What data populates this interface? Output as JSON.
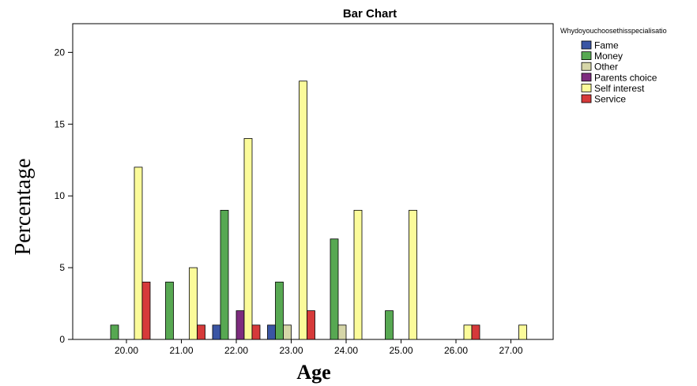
{
  "chart_data": {
    "type": "bar",
    "title": "Bar Chart",
    "xlabel": "Age",
    "ylabel": "Percentage",
    "legend_title": "Whydoyouchoosethisspecialisatio",
    "legend_position": "right",
    "ylim": [
      0,
      22
    ],
    "yticks": [
      0,
      5,
      10,
      15,
      20
    ],
    "grid": false,
    "categories": [
      "20.00",
      "21.00",
      "22.00",
      "23.00",
      "24.00",
      "25.00",
      "26.00",
      "27.00"
    ],
    "series": [
      {
        "name": "Fame",
        "color": "#3a55a4",
        "values": [
          0,
          0,
          1,
          1,
          0,
          0,
          0,
          0
        ]
      },
      {
        "name": "Money",
        "color": "#57a852",
        "values": [
          1,
          4,
          9,
          4,
          7,
          2,
          0,
          0
        ]
      },
      {
        "name": "Other",
        "color": "#d6d6a8",
        "values": [
          0,
          0,
          0,
          1,
          1,
          0,
          0,
          0
        ]
      },
      {
        "name": "Parents choice",
        "color": "#7d2c7e",
        "values": [
          0,
          0,
          2,
          0,
          0,
          0,
          0,
          0
        ]
      },
      {
        "name": "Self interest",
        "color": "#fbfb9a",
        "values": [
          12,
          5,
          14,
          18,
          9,
          9,
          1,
          1
        ]
      },
      {
        "name": "Service",
        "color": "#d63a3a",
        "values": [
          4,
          1,
          1,
          2,
          0,
          0,
          1,
          0
        ]
      }
    ]
  }
}
